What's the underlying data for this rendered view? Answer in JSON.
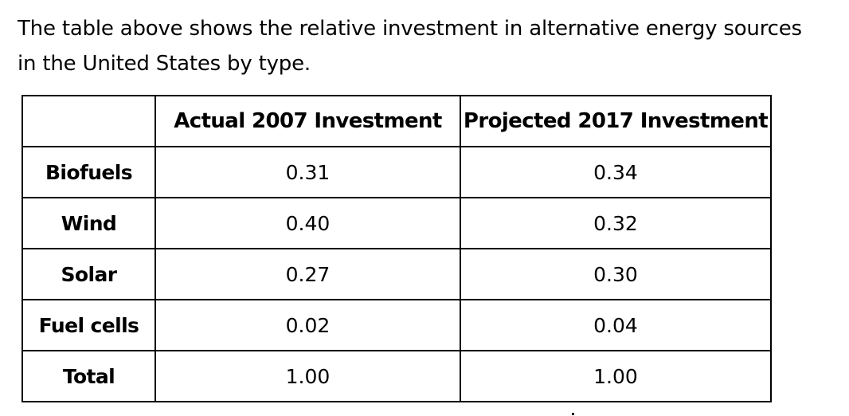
{
  "intro": {
    "line1": "The table above shows the relative investment in alternative energy sources",
    "line2": "in the United States by type."
  },
  "table": {
    "headers": [
      "",
      "Actual 2007 Investment",
      "Projected 2017 Investment"
    ],
    "rows": [
      {
        "type": "Biofuels",
        "actual_2007": "0.31",
        "projected_2017": "0.34"
      },
      {
        "type": "Wind",
        "actual_2007": "0.40",
        "projected_2017": "0.32"
      },
      {
        "type": "Solar",
        "actual_2007": "0.27",
        "projected_2017": "0.30"
      },
      {
        "type": "Fuel cells",
        "actual_2007": "0.02",
        "projected_2017": "0.04"
      },
      {
        "type": "Total",
        "actual_2007": "1.00",
        "projected_2017": "1.00"
      }
    ]
  }
}
